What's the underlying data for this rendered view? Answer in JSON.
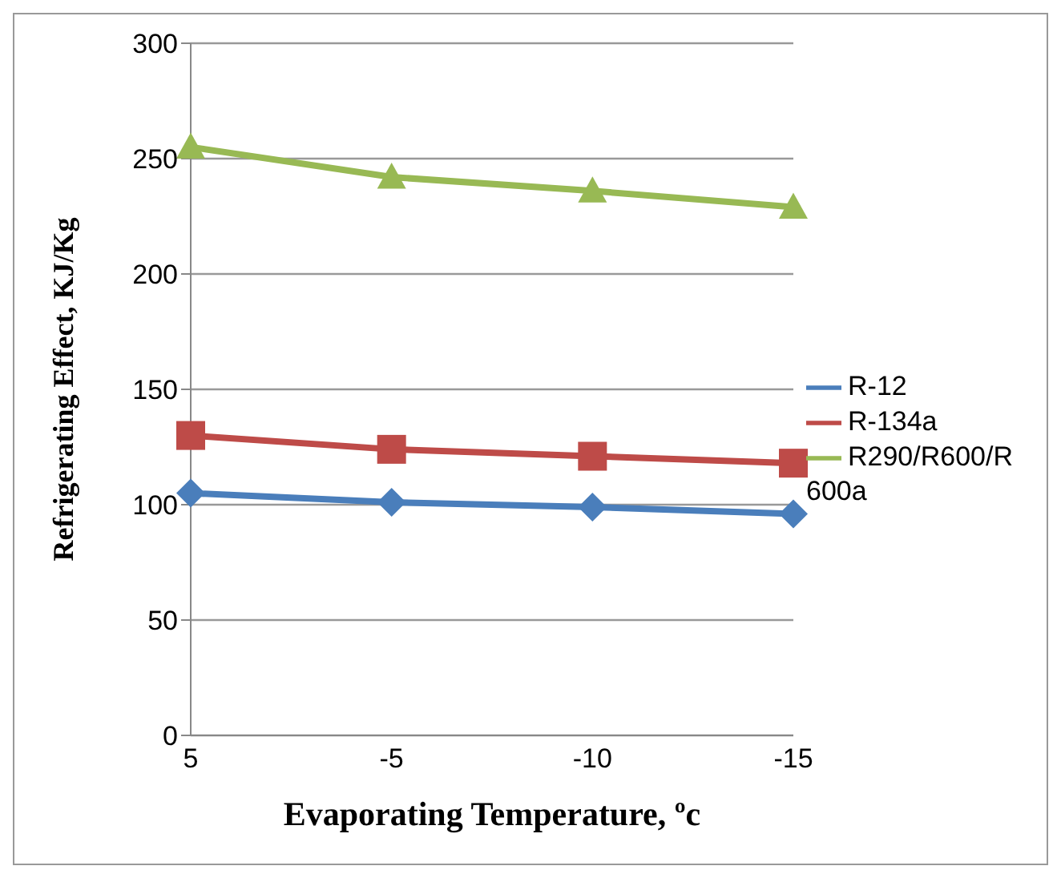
{
  "chart_data": {
    "type": "line",
    "xlabel": "Evaporating Temperature, ºc",
    "ylabel": "Refrigerating Effect, KJ/Kg",
    "categories": [
      "5",
      "-5",
      "-10",
      "-15"
    ],
    "ylim": [
      0,
      300
    ],
    "yticks": [
      0,
      50,
      100,
      150,
      200,
      250,
      300
    ],
    "grid": "y",
    "legend": "right",
    "series": [
      {
        "name": "R-12",
        "color": "#4a7ebb",
        "marker": "diamond",
        "values": [
          105,
          101,
          99,
          96
        ]
      },
      {
        "name": "R-134a",
        "color": "#be4b48",
        "marker": "square",
        "values": [
          130,
          124,
          121,
          118
        ]
      },
      {
        "name": "R290/R600/R600a",
        "color": "#98b954",
        "marker": "triangle",
        "values": [
          255,
          242,
          236,
          229
        ]
      }
    ]
  }
}
